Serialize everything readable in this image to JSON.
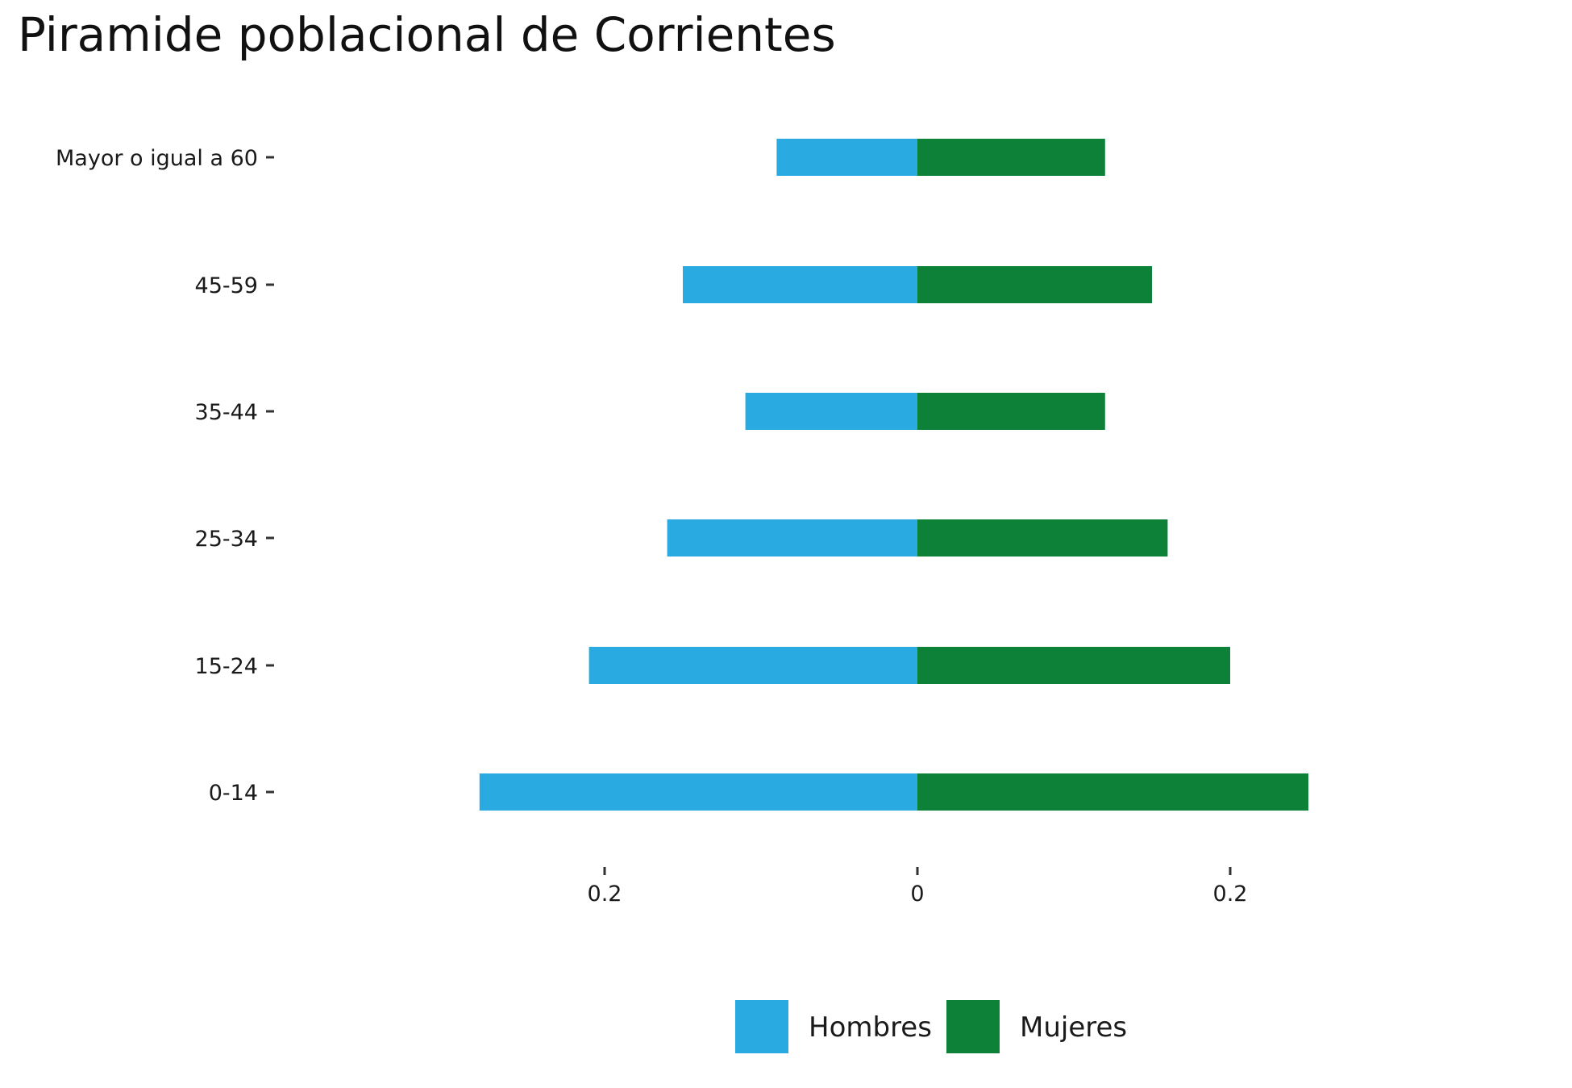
{
  "chart_data": {
    "type": "bar",
    "orientation": "horizontal",
    "stacking": "diverging",
    "title": "Piramide poblacional de Corrientes",
    "xlabel": "",
    "ylabel": "",
    "categories": [
      "0-14",
      "15-24",
      "25-34",
      "35-44",
      "45-59",
      "Mayor o igual a 60"
    ],
    "series": [
      {
        "name": "Hombres",
        "values": [
          -0.28,
          -0.21,
          -0.16,
          -0.11,
          -0.15,
          -0.09
        ],
        "color": "#29ABE2"
      },
      {
        "name": "Mujeres",
        "values": [
          0.25,
          0.2,
          0.16,
          0.12,
          0.15,
          0.12
        ],
        "color": "#0E8138"
      }
    ],
    "xlim": [
      -0.3,
      0.28
    ],
    "xticks": [
      {
        "value": -0.2,
        "label": "0.2"
      },
      {
        "value": 0,
        "label": "0"
      },
      {
        "value": 0.2,
        "label": "0.2"
      }
    ],
    "grid": false,
    "legend_position": "bottom"
  }
}
